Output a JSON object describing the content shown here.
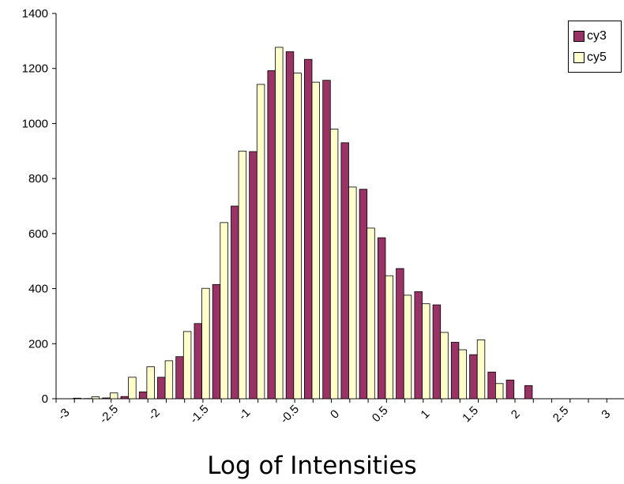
{
  "chart_data": {
    "type": "bar",
    "title": "",
    "xlabel": "Log of Intensities",
    "ylabel": "",
    "ylim": [
      0,
      1400
    ],
    "yticks": [
      0,
      200,
      400,
      600,
      800,
      1000,
      1200,
      1400
    ],
    "xticks": [
      "-3",
      "-2.5",
      "-2",
      "-1.5",
      "-1",
      "-0.5",
      "0",
      "0.5",
      "1",
      "1.5",
      "2",
      "2.5",
      "3"
    ],
    "grid": false,
    "legend_position": "top-right",
    "categories": [
      "-3",
      "-2.8",
      "-2.6",
      "-2.4",
      "-2.2",
      "-2",
      "-1.8",
      "-1.6",
      "-1.4",
      "-1.2",
      "-1",
      "-0.8",
      "-0.6",
      "-0.4",
      "-0.2",
      "0",
      "0.2",
      "0.4",
      "0.6",
      "0.8",
      "1",
      "1.2",
      "1.4",
      "1.6",
      "1.8",
      "2",
      "2.2",
      "2.4",
      "2.6",
      "2.8",
      "3"
    ],
    "series": [
      {
        "name": "cy3",
        "color": "#993366",
        "values": [
          0,
          1,
          3,
          8,
          25,
          78,
          153,
          273,
          415,
          700,
          898,
          1192,
          1261,
          1233,
          1157,
          930,
          761,
          585,
          473,
          389,
          341,
          205,
          160,
          97,
          68,
          48,
          0,
          0,
          0,
          0,
          0
        ]
      },
      {
        "name": "cy5",
        "color": "#FFFFCC",
        "values": [
          2,
          7,
          21,
          78,
          116,
          138,
          244,
          401,
          640,
          900,
          1142,
          1277,
          1183,
          1150,
          980,
          769,
          620,
          447,
          376,
          345,
          241,
          178,
          214,
          55,
          0,
          0,
          0,
          0,
          0,
          0,
          0
        ]
      }
    ]
  },
  "legend": {
    "entries": [
      {
        "label": "cy3",
        "color": "#993366"
      },
      {
        "label": "cy5",
        "color": "#FFFFCC"
      }
    ]
  }
}
